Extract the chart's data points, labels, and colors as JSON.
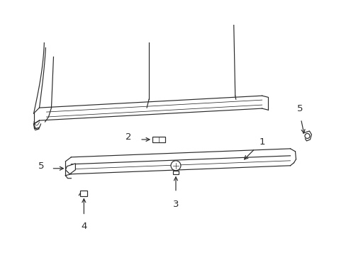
{
  "bg_color": "#ffffff",
  "line_color": "#2a2a2a",
  "fig_width": 4.89,
  "fig_height": 3.6,
  "dpi": 100,
  "lw": 0.85,
  "lwd": 0.55,
  "fs": 9.5
}
